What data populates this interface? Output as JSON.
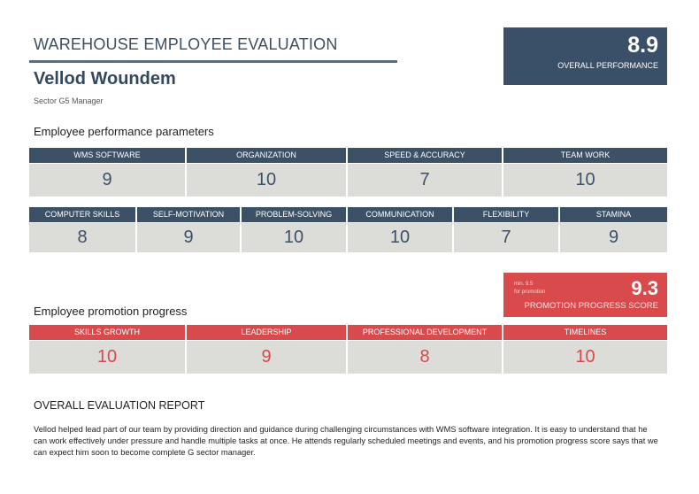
{
  "header": {
    "title": "WAREHOUSE EMPLOYEE EVALUATION",
    "name": "Vellod Woundem",
    "role": "Sector G5 Manager"
  },
  "overall": {
    "score": "8.9",
    "label": "OVERALL PERFORMANCE"
  },
  "performance": {
    "title": "Employee performance parameters",
    "row1": [
      {
        "label": "WMS SOFTWARE",
        "value": "9"
      },
      {
        "label": "ORGANIZATION",
        "value": "10"
      },
      {
        "label": "SPEED & ACCURACY",
        "value": "7"
      },
      {
        "label": "TEAM WORK",
        "value": "10"
      }
    ],
    "row2": [
      {
        "label": "COMPUTER SKILLS",
        "value": "8"
      },
      {
        "label": "SELF-MOTIVATION",
        "value": "9"
      },
      {
        "label": "PROBLEM-SOLVING",
        "value": "10"
      },
      {
        "label": "COMMUNICATION",
        "value": "10"
      },
      {
        "label": "FLEXIBILITY",
        "value": "7"
      },
      {
        "label": "STAMINA",
        "value": "9"
      }
    ]
  },
  "promotion": {
    "title": "Employee promotion progress",
    "min_line1": "min. 9.5",
    "min_line2": "for promotion",
    "score": "9.3",
    "label": "PROMOTION PROGRESS SCORE",
    "items": [
      {
        "label": "SKILLS GROWTH",
        "value": "10"
      },
      {
        "label": "LEADERSHIP",
        "value": "9"
      },
      {
        "label": "PROFESSIONAL DEVELOPMENT",
        "value": "8"
      },
      {
        "label": "TIMELINES",
        "value": "10"
      }
    ]
  },
  "report": {
    "title": "OVERALL EVALUATION REPORT",
    "text": "Vellod helped lead part of our team by providing direction and guidance during challenging circumstances with WMS software integration. It is easy to understand that he can work effectively under pressure and handle multiple tasks at once. He attends regularly scheduled meetings and events, and his promotion progress score says that we can expect him soon to become complete G sector manager."
  },
  "colors": {
    "primary": "#3d5166",
    "accent": "#d84a4b",
    "cell_bg": "#dcdcd9"
  }
}
